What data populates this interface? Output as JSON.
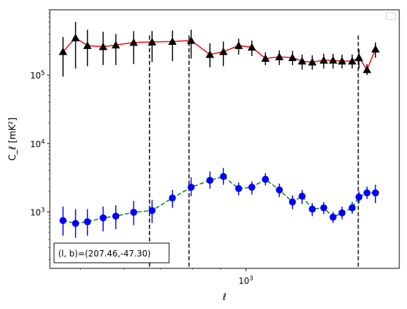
{
  "chart_data": {
    "type": "line",
    "xscale": "log",
    "yscale": "log",
    "xlim": [
      440,
      1900
    ],
    "ylim": [
      150,
      900000
    ],
    "xlabel": "ℓ",
    "ylabel": "C_ℓ  [mK²]",
    "x_ticks": [
      {
        "value": 1000,
        "label": "10^3"
      }
    ],
    "y_ticks": [
      {
        "value": 1000,
        "label": "10^3"
      },
      {
        "value": 10000,
        "label": "10^4"
      },
      {
        "value": 100000,
        "label": "10^5"
      }
    ],
    "legend": {
      "position": "top-right",
      "entries": []
    },
    "annotation": "(l, b)=(207.46,-47.30)",
    "vlines": [
      668,
      788,
      1600
    ],
    "series": [
      {
        "color": "#ff0000",
        "marker": "triangle",
        "marker_color": "#000000",
        "x": [
          465,
          490,
          515,
          550,
          580,
          625,
          675,
          735,
          795,
          860,
          910,
          970,
          1025,
          1085,
          1150,
          1215,
          1265,
          1320,
          1385,
          1440,
          1495,
          1560,
          1605,
          1660,
          1720
        ],
        "y": [
          220000,
          350000,
          270000,
          260000,
          275000,
          300000,
          305000,
          310000,
          320000,
          200000,
          220000,
          270000,
          255000,
          175000,
          185000,
          180000,
          160000,
          155000,
          165000,
          165000,
          160000,
          160000,
          180000,
          120000,
          240000
        ],
        "err_low": [
          95000,
          125000,
          135000,
          140000,
          140000,
          145000,
          155000,
          160000,
          175000,
          130000,
          135000,
          200000,
          190000,
          140000,
          140000,
          140000,
          120000,
          120000,
          125000,
          125000,
          125000,
          125000,
          125000,
          100000,
          180000
        ],
        "err_high": [
          360000,
          600000,
          460000,
          430000,
          400000,
          440000,
          440000,
          450000,
          460000,
          290000,
          310000,
          340000,
          320000,
          215000,
          230000,
          225000,
          200000,
          195000,
          205000,
          205000,
          200000,
          200000,
          240000,
          145000,
          300000
        ]
      },
      {
        "color": "#008000",
        "marker": "circle",
        "marker_color": "#0000ff",
        "x": [
          465,
          490,
          515,
          550,
          580,
          625,
          675,
          735,
          795,
          860,
          910,
          970,
          1025,
          1085,
          1150,
          1215,
          1265,
          1320,
          1385,
          1440,
          1495,
          1560,
          1605,
          1660,
          1720
        ],
        "y": [
          750,
          680,
          720,
          820,
          870,
          990,
          1050,
          1600,
          2300,
          2900,
          3300,
          2200,
          2300,
          3000,
          2100,
          1400,
          1700,
          1100,
          1150,
          840,
          970,
          1150,
          1650,
          1900,
          1900
        ],
        "err_low": [
          450,
          420,
          450,
          520,
          560,
          640,
          690,
          1150,
          1700,
          2200,
          2500,
          1750,
          1800,
          2450,
          1650,
          1100,
          1300,
          870,
          930,
          690,
          780,
          940,
          1350,
          1550,
          1350
        ],
        "err_high": [
          1200,
          1100,
          1100,
          1200,
          1250,
          1450,
          1500,
          2100,
          3200,
          3900,
          4400,
          2700,
          2800,
          3700,
          2600,
          1750,
          2100,
          1350,
          1400,
          1000,
          1200,
          1400,
          2000,
          2350,
          2500
        ]
      }
    ]
  }
}
